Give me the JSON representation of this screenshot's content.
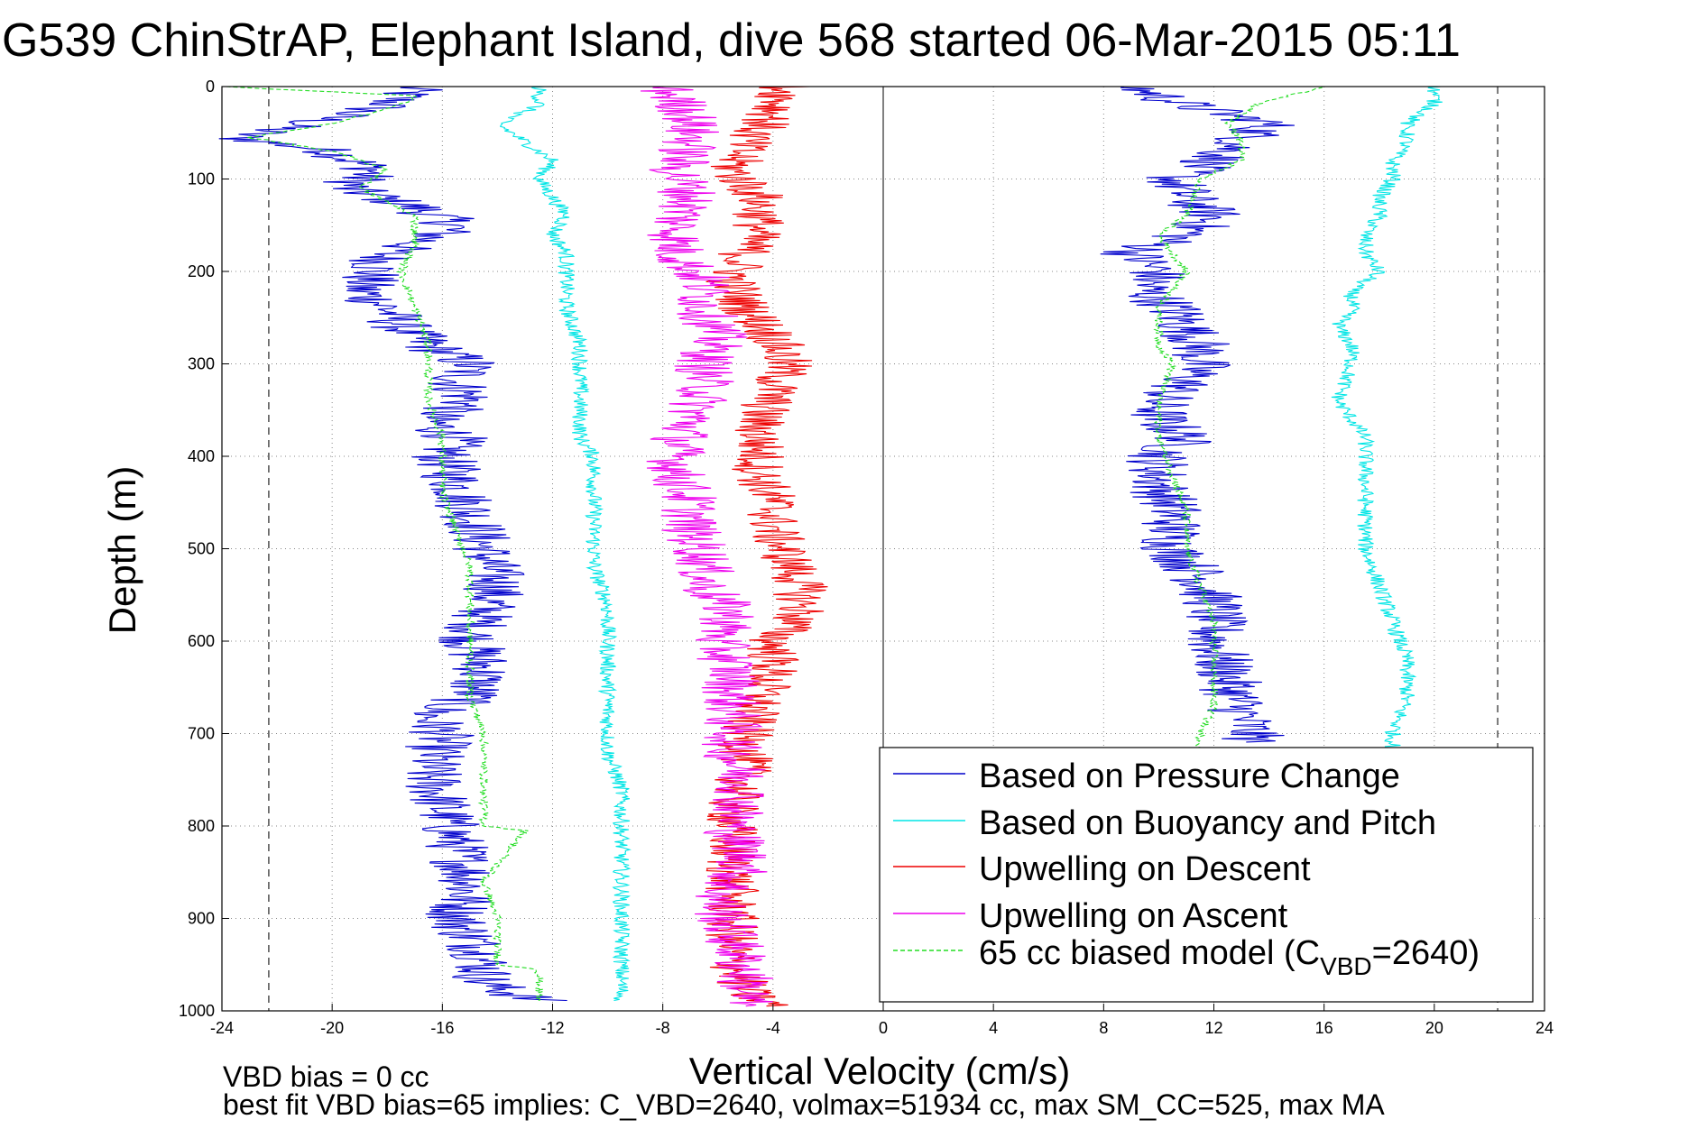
{
  "chart_data": {
    "type": "line",
    "title": "G539 ChinStrAP, Elephant Island, dive 568 started 06-Mar-2015 05:11",
    "xlabel": "Vertical Velocity (cm/s)",
    "ylabel": "Depth (m)",
    "xlim": [
      -24,
      24
    ],
    "ylim": [
      0,
      1000
    ],
    "y_reversed": true,
    "grid": true,
    "xticks": [
      -24,
      -20,
      -16,
      -12,
      -8,
      -4,
      0,
      4,
      8,
      12,
      16,
      20,
      24
    ],
    "yticks": [
      0,
      100,
      200,
      300,
      400,
      500,
      600,
      700,
      800,
      900,
      1000
    ],
    "vlines": [
      -22.3,
      22.3
    ],
    "legend_position": "bottom-right",
    "series": [
      {
        "name": "Based on Pressure Change",
        "color": "#0000cc",
        "style": "solid",
        "descent": {
          "depth": [
            0,
            20,
            40,
            55,
            70,
            90,
            110,
            130,
            150,
            165,
            180,
            200,
            220,
            240,
            260,
            280,
            300,
            320,
            340,
            360,
            380,
            400,
            430,
            460,
            500,
            540,
            570,
            600,
            630,
            660,
            680,
            700,
            740,
            780,
            820,
            860,
            900,
            940,
            970,
            990
          ],
          "velocity": [
            -17,
            -18,
            -21,
            -23.5,
            -20,
            -18.5,
            -19.5,
            -17,
            -15.5,
            -16.5,
            -18,
            -18.5,
            -19,
            -18,
            -17.5,
            -16.5,
            -15,
            -15.5,
            -15,
            -16.5,
            -15.5,
            -16,
            -15.5,
            -15,
            -14.5,
            -14,
            -14.5,
            -15,
            -14.5,
            -15,
            -16.5,
            -16,
            -16.5,
            -16,
            -15.5,
            -15,
            -15.5,
            -14.5,
            -14.5,
            -12.5
          ]
        },
        "ascent": {
          "depth": [
            0,
            20,
            40,
            60,
            80,
            100,
            120,
            140,
            160,
            180,
            200,
            220,
            240,
            260,
            280,
            300,
            320,
            340,
            360,
            380,
            400,
            430,
            460,
            500,
            530,
            560,
            600,
            640,
            680,
            710
          ],
          "velocity": [
            9,
            11,
            14,
            13,
            12,
            10.5,
            11,
            12,
            11,
            9,
            10,
            9.5,
            10.5,
            11,
            11.5,
            11.5,
            11,
            10,
            10,
            11,
            10,
            10,
            10.5,
            10.5,
            11.5,
            12,
            12,
            12.5,
            13,
            13.5
          ]
        }
      },
      {
        "name": "Based on Buoyancy and Pitch",
        "color": "#00e5e5",
        "style": "solid",
        "descent": {
          "depth": [
            0,
            20,
            40,
            60,
            80,
            100,
            120,
            140,
            160,
            180,
            200,
            240,
            280,
            300,
            340,
            380,
            400,
            440,
            480,
            520,
            560,
            600,
            640,
            680,
            720,
            760,
            800,
            840,
            880,
            920,
            960,
            990
          ],
          "velocity": [
            -12.5,
            -12.5,
            -14,
            -13,
            -12,
            -12.5,
            -12,
            -11.5,
            -12,
            -11.5,
            -11.5,
            -11.5,
            -11,
            -11,
            -11,
            -11,
            -10.5,
            -10.5,
            -10.5,
            -10.5,
            -10,
            -10,
            -10,
            -10,
            -10,
            -9.5,
            -9.5,
            -9.5,
            -9.5,
            -9.5,
            -9.5,
            -9.5
          ]
        },
        "ascent": {
          "depth": [
            0,
            20,
            40,
            60,
            80,
            100,
            120,
            140,
            160,
            180,
            200,
            220,
            240,
            260,
            280,
            300,
            340,
            380,
            420,
            460,
            500,
            540,
            580,
            620,
            660,
            700,
            720
          ],
          "velocity": [
            20,
            20,
            19,
            19,
            18.5,
            18.5,
            18,
            18,
            17.5,
            17.5,
            18,
            17,
            17,
            16.5,
            17,
            17,
            16.5,
            17.5,
            17.5,
            17.5,
            17.5,
            18,
            18.5,
            19,
            19,
            18.5,
            18.5
          ]
        }
      },
      {
        "name": "Upwelling on Descent",
        "color": "#ee0000",
        "style": "solid",
        "descent": {
          "depth": [
            0,
            30,
            60,
            90,
            120,
            150,
            180,
            210,
            240,
            270,
            300,
            330,
            360,
            390,
            420,
            450,
            480,
            510,
            540,
            570,
            600,
            630,
            660,
            700,
            740,
            780,
            820,
            860,
            900,
            940,
            980,
            995
          ],
          "velocity": [
            -3.5,
            -4,
            -5,
            -5.5,
            -4.5,
            -4.5,
            -5,
            -5.5,
            -5,
            -4,
            -3.5,
            -4,
            -4.5,
            -4.5,
            -4.5,
            -4,
            -4,
            -3.5,
            -3,
            -3,
            -4,
            -4,
            -4.5,
            -5,
            -5,
            -5.5,
            -5.5,
            -5.5,
            -5.5,
            -5.5,
            -5,
            -4
          ]
        }
      },
      {
        "name": "Upwelling on Ascent",
        "color": "#ee00ee",
        "style": "solid",
        "ascent": {
          "depth": [
            0,
            30,
            60,
            90,
            120,
            150,
            180,
            210,
            240,
            270,
            300,
            330,
            360,
            390,
            420,
            450,
            480,
            510,
            540,
            570,
            600,
            630,
            660,
            690,
            720,
            760,
            800,
            840,
            880,
            920,
            960,
            995
          ],
          "velocity": [
            -8,
            -7,
            -7,
            -7.5,
            -7,
            -7.5,
            -7.5,
            -6.5,
            -6.5,
            -6,
            -6.5,
            -6.5,
            -7,
            -7.5,
            -7.5,
            -7,
            -7,
            -6.5,
            -6.5,
            -5.5,
            -6,
            -5.5,
            -5.5,
            -5.5,
            -5.5,
            -5,
            -5.5,
            -5,
            -6,
            -5.5,
            -5,
            -5
          ]
        }
      },
      {
        "name": "65 cc biased model (C",
        "name_sub": "VBD",
        "name_tail": "=2640)",
        "color": "#22dd22",
        "style": "dashed",
        "descent": {
          "depth": [
            0,
            10,
            20,
            40,
            55,
            70,
            90,
            110,
            140,
            160,
            170,
            200,
            240,
            280,
            300,
            340,
            380,
            400,
            440,
            480,
            520,
            540,
            600,
            660,
            700,
            760,
            800,
            805,
            860,
            900,
            950,
            955,
            990
          ],
          "velocity": [
            -24,
            -17,
            -17.5,
            -20,
            -23,
            -20,
            -18,
            -19,
            -17,
            -17,
            -17,
            -17.5,
            -17,
            -16.5,
            -16.5,
            -16.5,
            -16,
            -16,
            -16,
            -15.5,
            -15,
            -15,
            -15,
            -15,
            -14.5,
            -14.5,
            -14.5,
            -13,
            -14.5,
            -14,
            -14,
            -12.5,
            -12.5
          ]
        },
        "ascent": {
          "depth": [
            0,
            20,
            40,
            60,
            80,
            100,
            140,
            160,
            200,
            240,
            280,
            300,
            340,
            380,
            420,
            460,
            500,
            540,
            580,
            620,
            660,
            670,
            700,
            740
          ],
          "velocity": [
            16,
            13.5,
            12.5,
            13,
            13,
            11.5,
            11,
            10,
            11,
            10,
            10,
            10.5,
            10,
            10,
            10.5,
            11,
            11,
            11.5,
            12,
            12,
            12,
            12,
            11.5,
            11.5
          ]
        }
      }
    ],
    "annotations": [
      "VBD bias = 0 cc",
      "best fit VBD bias=65 implies: C_VBD=2640, volmax=51934 cc, max SM_CC=525, max MA"
    ]
  }
}
